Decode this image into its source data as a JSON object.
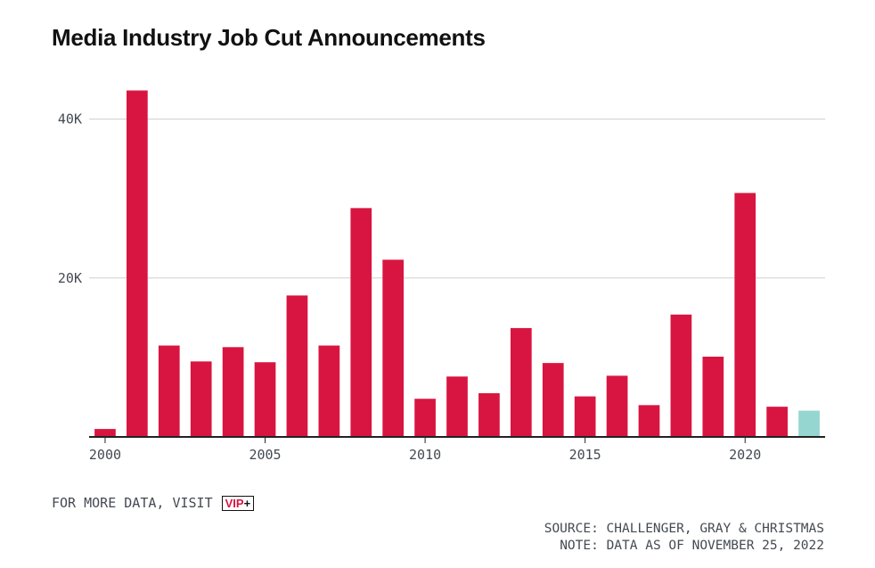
{
  "colors": {
    "bar": "#d81540",
    "highlight": "#95d6d0",
    "grid": "#d0d0d0",
    "axis": "#222222"
  },
  "more_data": {
    "label": "FOR MORE DATA, VISIT",
    "vip_text": "VIP",
    "vip_plus": "+"
  },
  "footer": {
    "source": "SOURCE: CHALLENGER, GRAY & CHRISTMAS",
    "note": "NOTE: DATA AS OF NOVEMBER 25, 2022"
  },
  "chart_data": {
    "type": "bar",
    "title": "Media Industry Job Cut Announcements",
    "xlabel": "",
    "ylabel": "",
    "x": [
      2000,
      2001,
      2002,
      2003,
      2004,
      2005,
      2006,
      2007,
      2008,
      2009,
      2010,
      2011,
      2012,
      2013,
      2014,
      2015,
      2016,
      2017,
      2018,
      2019,
      2020,
      2021,
      2022
    ],
    "values": [
      1000,
      43600,
      11500,
      9500,
      11300,
      9400,
      17800,
      11500,
      28800,
      22300,
      4800,
      7600,
      5500,
      13700,
      9300,
      5100,
      7700,
      4000,
      15400,
      10100,
      30700,
      3800,
      3300
    ],
    "highlight_x": 2022,
    "ylim": [
      0,
      45000
    ],
    "yticks": [
      20000,
      40000
    ],
    "ytick_labels": [
      "20K",
      "40K"
    ],
    "xticks": [
      2000,
      2005,
      2010,
      2015,
      2020
    ],
    "xtick_labels": [
      "2000",
      "2005",
      "2010",
      "2015",
      "2020"
    ],
    "grid": true,
    "legend": "none"
  }
}
